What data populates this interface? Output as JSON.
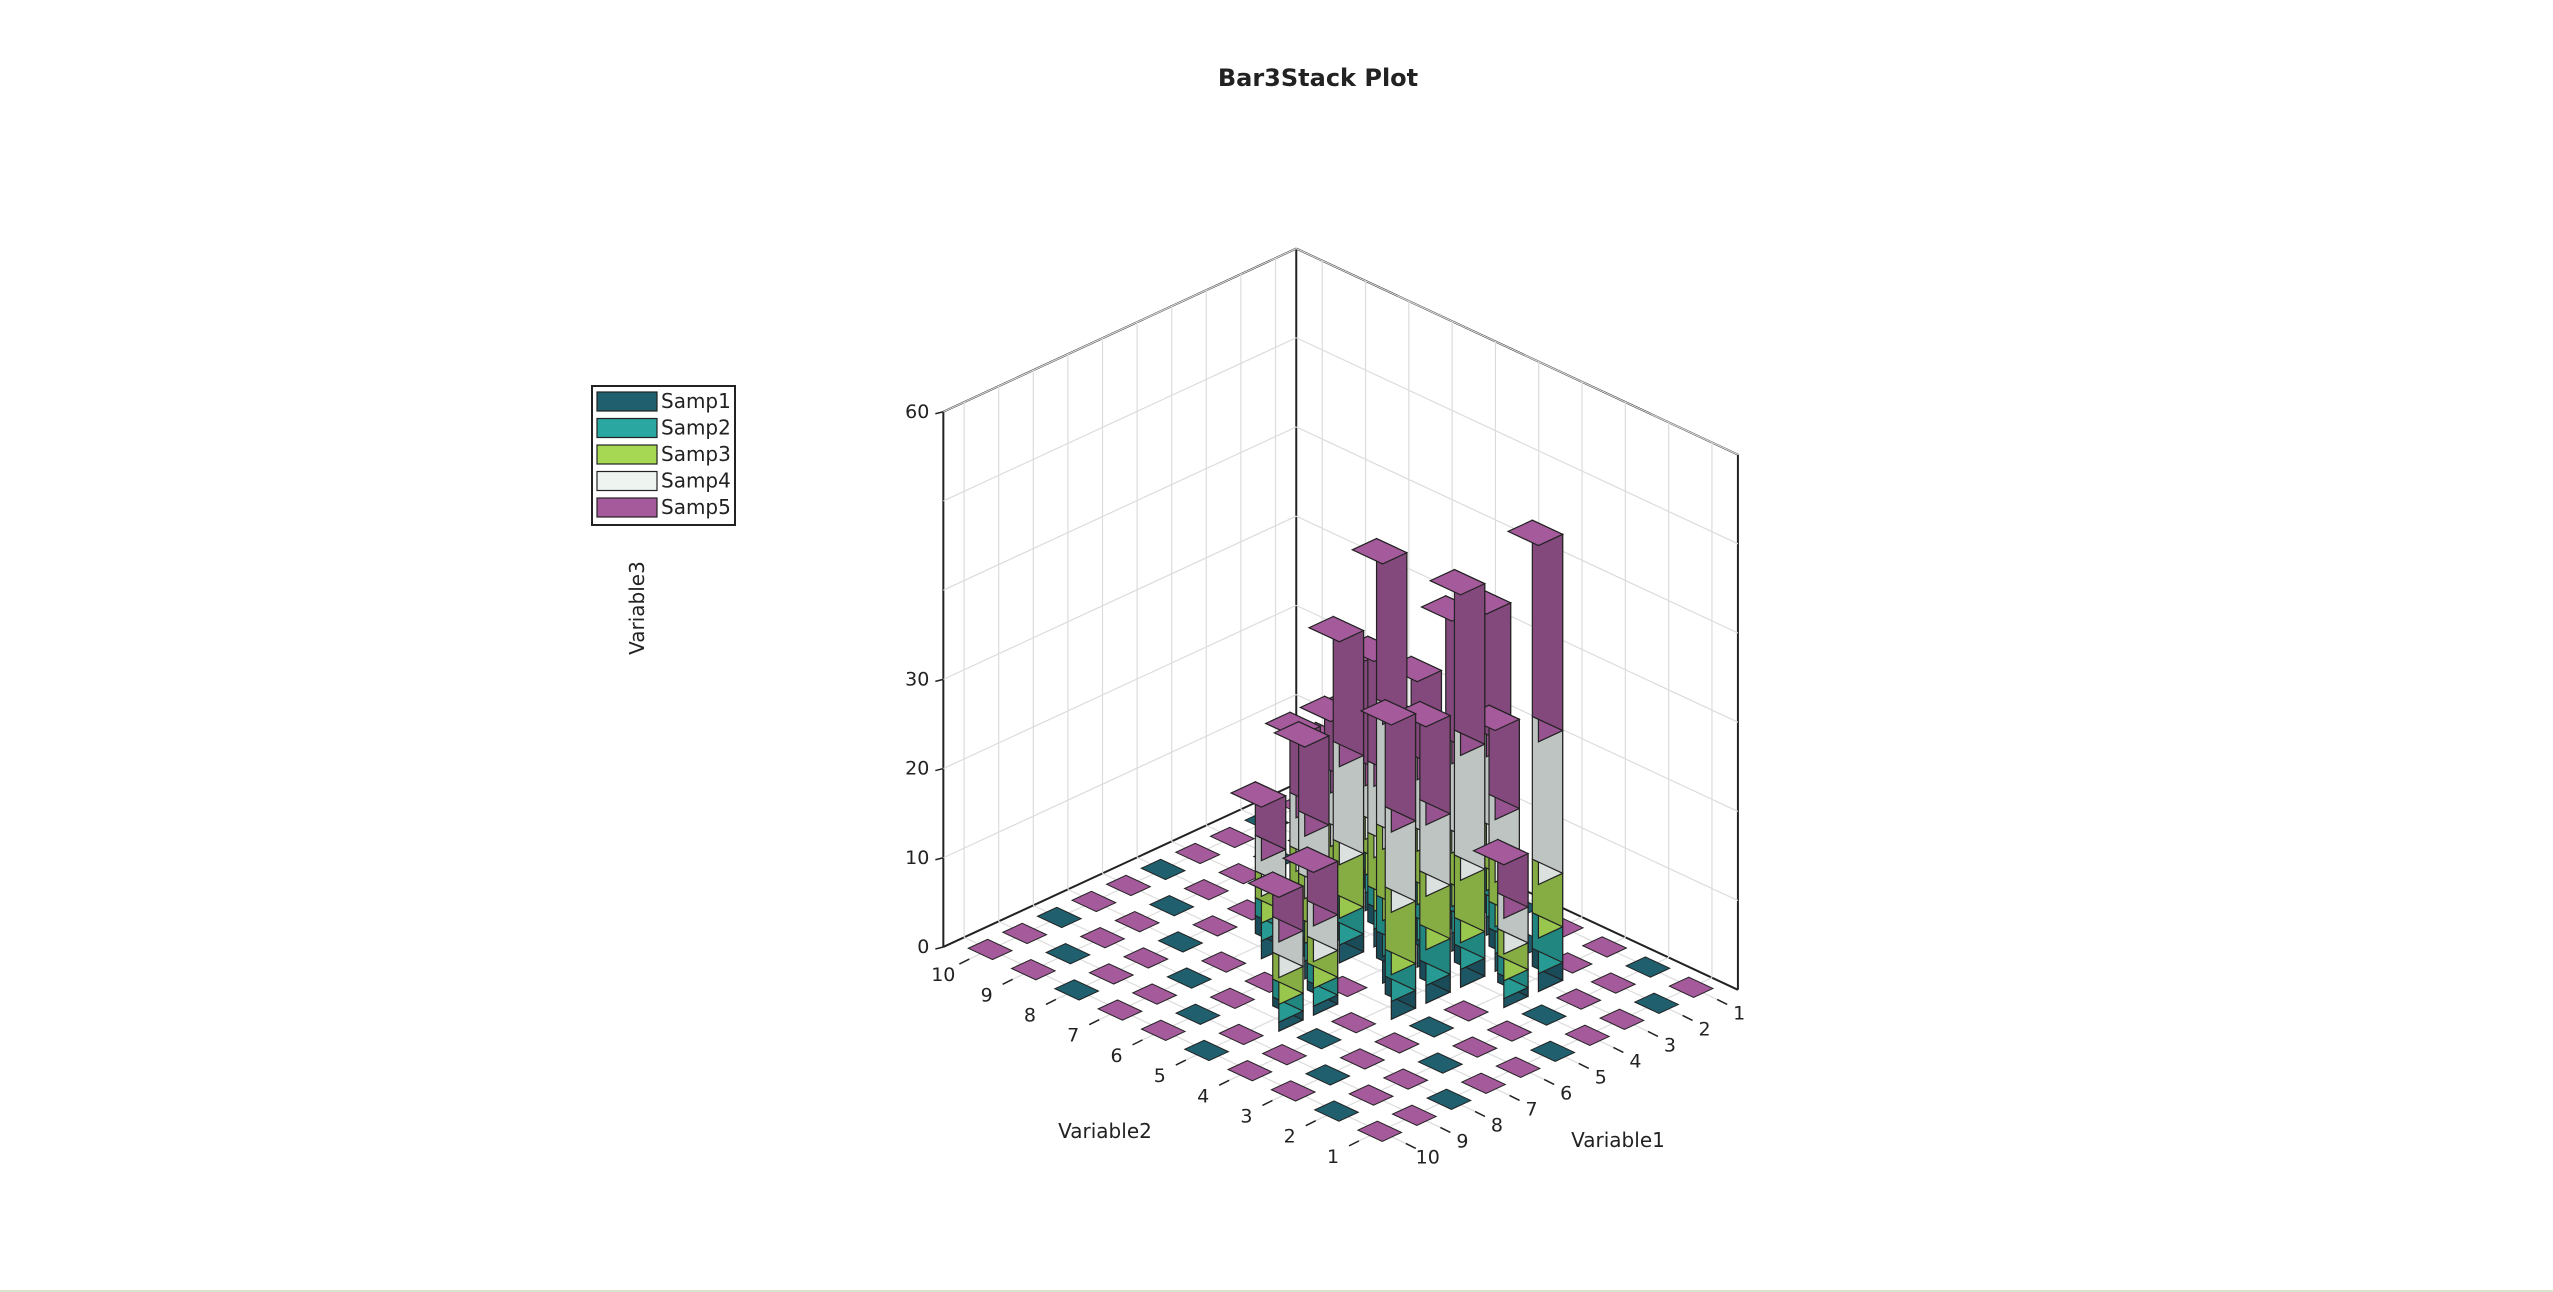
{
  "chart_data": {
    "type": "bar3-stacked",
    "title": "Bar3Stack Plot",
    "xlabel": "Variable1",
    "ylabel": "Variable2",
    "zlabel": "Variable3",
    "x_ticks": [
      "1",
      "2",
      "3",
      "4",
      "5",
      "6",
      "7",
      "8",
      "9",
      "10"
    ],
    "y_ticks": [
      "1",
      "2",
      "3",
      "4",
      "5",
      "6",
      "7",
      "8",
      "9",
      "10"
    ],
    "z_ticks": [
      "0",
      "10",
      "20",
      "30",
      "60"
    ],
    "zlim": [
      0,
      60
    ],
    "series": [
      {
        "name": "Samp1",
        "color": "#1f5f6e"
      },
      {
        "name": "Samp2",
        "color": "#2aa7a0"
      },
      {
        "name": "Samp3",
        "color": "#a6d854"
      },
      {
        "name": "Samp4",
        "color": "#eef5f1"
      },
      {
        "name": "Samp5",
        "color": "#a45a9b"
      }
    ],
    "bars": [
      {
        "x": 3,
        "y": 7,
        "values": [
          2,
          2,
          4,
          6,
          14
        ]
      },
      {
        "x": 4,
        "y": 6,
        "values": [
          2,
          2,
          6,
          8,
          14
        ]
      },
      {
        "x": 3,
        "y": 5,
        "values": [
          2,
          3,
          6,
          10,
          16
        ]
      },
      {
        "x": 4,
        "y": 4,
        "values": [
          2,
          3,
          7,
          14,
          18
        ]
      },
      {
        "x": 3,
        "y": 3,
        "values": [
          2,
          4,
          6,
          16,
          22
        ]
      },
      {
        "x": 5,
        "y": 5,
        "values": [
          3,
          4,
          8,
          14,
          18
        ]
      },
      {
        "x": 6,
        "y": 4,
        "values": [
          2,
          3,
          7,
          9,
          12
        ]
      },
      {
        "x": 5,
        "y": 6,
        "values": [
          2,
          3,
          6,
          11,
          14
        ]
      },
      {
        "x": 2,
        "y": 5,
        "values": [
          2,
          3,
          5,
          10,
          16
        ]
      },
      {
        "x": 6,
        "y": 6,
        "values": [
          2,
          2,
          5,
          7,
          10
        ]
      },
      {
        "x": 5,
        "y": 4,
        "values": [
          2,
          4,
          6,
          8,
          11
        ]
      },
      {
        "x": 4,
        "y": 5,
        "values": [
          3,
          4,
          6,
          8,
          11
        ]
      },
      {
        "x": 3,
        "y": 4,
        "values": [
          2,
          3,
          5,
          7,
          10
        ]
      },
      {
        "x": 5,
        "y": 7,
        "values": [
          2,
          2,
          4,
          6,
          9
        ]
      },
      {
        "x": 4,
        "y": 7,
        "values": [
          2,
          3,
          4,
          6,
          8
        ]
      },
      {
        "x": 2,
        "y": 7,
        "values": [
          2,
          2,
          4,
          5,
          6
        ]
      },
      {
        "x": 2,
        "y": 8,
        "values": [
          2,
          2,
          4,
          4,
          6
        ]
      },
      {
        "x": 3,
        "y": 8,
        "values": [
          1,
          2,
          3,
          4,
          6
        ]
      },
      {
        "x": 4,
        "y": 3,
        "values": [
          1,
          2,
          3,
          4,
          6
        ]
      },
      {
        "x": 6,
        "y": 7,
        "values": [
          2,
          2,
          3,
          4,
          6
        ]
      },
      {
        "x": 7,
        "y": 5,
        "values": [
          1,
          2,
          3,
          4,
          6
        ]
      },
      {
        "x": 8,
        "y": 5,
        "values": [
          1,
          2,
          3,
          4,
          5
        ]
      }
    ]
  }
}
